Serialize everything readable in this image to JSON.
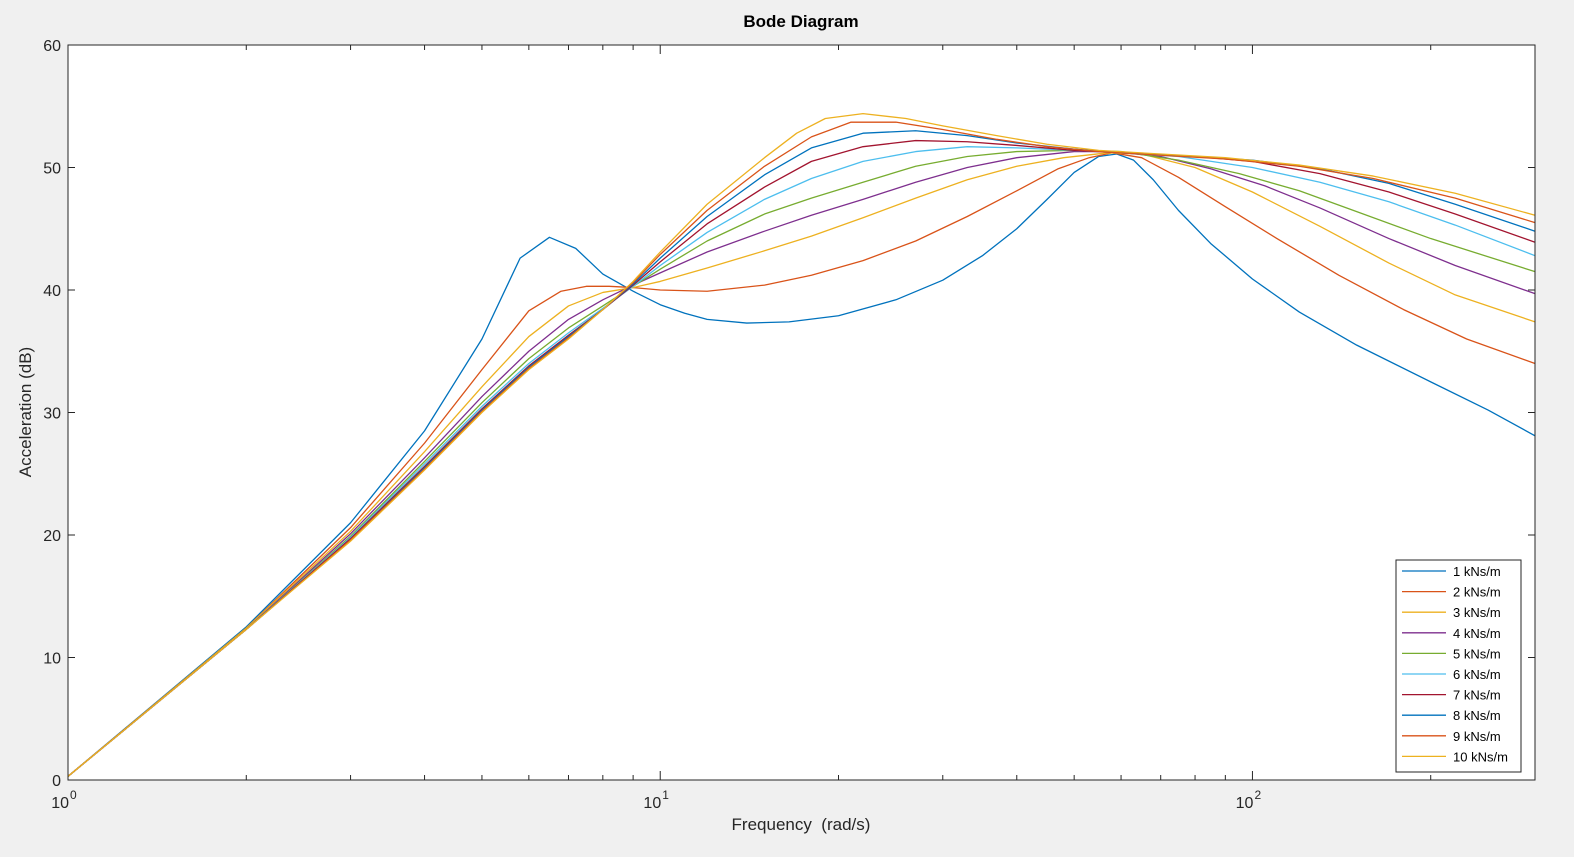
{
  "window": {
    "background": "#f0f0f0"
  },
  "chart_data": {
    "type": "line",
    "title": "Bode Diagram",
    "xlabel": "Frequency  (rad/s)",
    "ylabel": "Acceleration (dB)",
    "xscale": "log",
    "xlim": [
      1,
      300
    ],
    "ylim": [
      0,
      60
    ],
    "yticks": [
      0,
      10,
      20,
      30,
      40,
      50,
      60
    ],
    "xticks_major": [
      {
        "value": 1,
        "base": "10",
        "exp": "0"
      },
      {
        "value": 10,
        "base": "10",
        "exp": "1"
      },
      {
        "value": 100,
        "base": "10",
        "exp": "2"
      }
    ],
    "grid": false,
    "legend_position": "bottom-right",
    "series": [
      {
        "name": "1 kNs/m",
        "color": "#0072BD",
        "points": [
          [
            1,
            0.3
          ],
          [
            2,
            12.5
          ],
          [
            3,
            21
          ],
          [
            4,
            28.5
          ],
          [
            5,
            36
          ],
          [
            5.8,
            42.6
          ],
          [
            6.5,
            44.3
          ],
          [
            7.2,
            43.4
          ],
          [
            8,
            41.3
          ],
          [
            9,
            39.9
          ],
          [
            10,
            38.8
          ],
          [
            11,
            38.1
          ],
          [
            12,
            37.6
          ],
          [
            14,
            37.3
          ],
          [
            16.5,
            37.4
          ],
          [
            20,
            37.9
          ],
          [
            25,
            39.2
          ],
          [
            30,
            40.8
          ],
          [
            35,
            42.8
          ],
          [
            40,
            45
          ],
          [
            45,
            47.4
          ],
          [
            50,
            49.6
          ],
          [
            55,
            50.9
          ],
          [
            59,
            51.1
          ],
          [
            63,
            50.6
          ],
          [
            68,
            49
          ],
          [
            75,
            46.5
          ],
          [
            85,
            43.8
          ],
          [
            100,
            40.9
          ],
          [
            120,
            38.2
          ],
          [
            150,
            35.5
          ],
          [
            200,
            32.5
          ],
          [
            250,
            30.2
          ],
          [
            300,
            28.1
          ]
        ]
      },
      {
        "name": "2 kNs/m",
        "color": "#D95319",
        "points": [
          [
            1,
            0.3
          ],
          [
            2,
            12.4
          ],
          [
            3,
            20.6
          ],
          [
            4,
            27.5
          ],
          [
            5,
            33.5
          ],
          [
            6,
            38.3
          ],
          [
            6.8,
            39.9
          ],
          [
            7.5,
            40.3
          ],
          [
            8.2,
            40.3
          ],
          [
            9,
            40.2
          ],
          [
            10,
            40
          ],
          [
            12,
            39.9
          ],
          [
            15,
            40.4
          ],
          [
            18,
            41.2
          ],
          [
            22,
            42.4
          ],
          [
            27,
            44
          ],
          [
            33,
            46
          ],
          [
            40,
            48.1
          ],
          [
            47,
            49.9
          ],
          [
            53,
            50.8
          ],
          [
            58,
            51.2
          ],
          [
            65,
            50.8
          ],
          [
            75,
            49.2
          ],
          [
            90,
            46.8
          ],
          [
            110,
            44.2
          ],
          [
            140,
            41.2
          ],
          [
            180,
            38.4
          ],
          [
            230,
            36
          ],
          [
            300,
            34
          ]
        ]
      },
      {
        "name": "3 kNs/m",
        "color": "#EDB120",
        "points": [
          [
            1,
            0.3
          ],
          [
            2,
            12.4
          ],
          [
            3,
            20.3
          ],
          [
            4,
            26.8
          ],
          [
            5,
            32.1
          ],
          [
            6,
            36.2
          ],
          [
            7,
            38.7
          ],
          [
            8,
            39.8
          ],
          [
            9,
            40.2
          ],
          [
            10,
            40.7
          ],
          [
            12,
            41.8
          ],
          [
            15,
            43.2
          ],
          [
            18,
            44.4
          ],
          [
            22,
            45.9
          ],
          [
            27,
            47.5
          ],
          [
            33,
            49
          ],
          [
            40,
            50.1
          ],
          [
            48,
            50.8
          ],
          [
            57,
            51.2
          ],
          [
            65,
            51.1
          ],
          [
            80,
            50
          ],
          [
            100,
            48
          ],
          [
            130,
            45.2
          ],
          [
            170,
            42.2
          ],
          [
            220,
            39.6
          ],
          [
            300,
            37.4
          ]
        ]
      },
      {
        "name": "4 kNs/m",
        "color": "#7E2F8E",
        "points": [
          [
            1,
            0.3
          ],
          [
            2,
            12.3
          ],
          [
            3,
            20.1
          ],
          [
            4,
            26.3
          ],
          [
            5,
            31.3
          ],
          [
            6,
            35
          ],
          [
            7,
            37.6
          ],
          [
            8,
            39.2
          ],
          [
            9,
            40.4
          ],
          [
            10,
            41.4
          ],
          [
            12,
            43.1
          ],
          [
            15,
            44.8
          ],
          [
            18,
            46.1
          ],
          [
            22,
            47.4
          ],
          [
            27,
            48.8
          ],
          [
            33,
            50
          ],
          [
            40,
            50.8
          ],
          [
            50,
            51.3
          ],
          [
            58,
            51.3
          ],
          [
            70,
            50.9
          ],
          [
            85,
            49.9
          ],
          [
            105,
            48.5
          ],
          [
            130,
            46.7
          ],
          [
            170,
            44.2
          ],
          [
            220,
            42
          ],
          [
            300,
            39.7
          ]
        ]
      },
      {
        "name": "5 kNs/m",
        "color": "#77AC30",
        "points": [
          [
            1,
            0.3
          ],
          [
            2,
            12.3
          ],
          [
            3,
            19.9
          ],
          [
            4,
            26
          ],
          [
            5,
            30.8
          ],
          [
            6,
            34.4
          ],
          [
            7,
            36.9
          ],
          [
            8,
            38.7
          ],
          [
            9,
            40.3
          ],
          [
            10,
            41.7
          ],
          [
            12,
            44
          ],
          [
            15,
            46.2
          ],
          [
            18,
            47.5
          ],
          [
            22,
            48.8
          ],
          [
            27,
            50.1
          ],
          [
            33,
            50.9
          ],
          [
            40,
            51.3
          ],
          [
            50,
            51.4
          ],
          [
            60,
            51.3
          ],
          [
            75,
            50.6
          ],
          [
            95,
            49.5
          ],
          [
            120,
            48.1
          ],
          [
            150,
            46.4
          ],
          [
            200,
            44.2
          ],
          [
            300,
            41.5
          ]
        ]
      },
      {
        "name": "6 kNs/m",
        "color": "#4DBEEE",
        "points": [
          [
            1,
            0.3
          ],
          [
            2,
            12.3
          ],
          [
            3,
            19.8
          ],
          [
            4,
            25.8
          ],
          [
            5,
            30.5
          ],
          [
            6,
            34
          ],
          [
            7,
            36.5
          ],
          [
            8,
            38.5
          ],
          [
            9,
            40.3
          ],
          [
            10,
            42
          ],
          [
            12,
            44.7
          ],
          [
            15,
            47.4
          ],
          [
            18,
            49.1
          ],
          [
            22,
            50.5
          ],
          [
            27,
            51.3
          ],
          [
            33,
            51.7
          ],
          [
            40,
            51.6
          ],
          [
            50,
            51.4
          ],
          [
            60,
            51.2
          ],
          [
            75,
            50.9
          ],
          [
            100,
            50
          ],
          [
            130,
            48.8
          ],
          [
            170,
            47.2
          ],
          [
            220,
            45.3
          ],
          [
            300,
            42.8
          ]
        ]
      },
      {
        "name": "7 kNs/m",
        "color": "#A2142F",
        "points": [
          [
            1,
            0.3
          ],
          [
            2,
            12.3
          ],
          [
            3,
            19.7
          ],
          [
            4,
            25.6
          ],
          [
            5,
            30.3
          ],
          [
            6,
            33.8
          ],
          [
            7,
            36.3
          ],
          [
            8,
            38.4
          ],
          [
            9,
            40.4
          ],
          [
            10,
            42.3
          ],
          [
            12,
            45.4
          ],
          [
            15,
            48.4
          ],
          [
            18,
            50.5
          ],
          [
            22,
            51.7
          ],
          [
            27,
            52.2
          ],
          [
            33,
            52.1
          ],
          [
            40,
            51.8
          ],
          [
            50,
            51.4
          ],
          [
            60,
            51.2
          ],
          [
            80,
            50.9
          ],
          [
            100,
            50.5
          ],
          [
            130,
            49.5
          ],
          [
            170,
            48
          ],
          [
            220,
            46.2
          ],
          [
            300,
            43.9
          ]
        ]
      },
      {
        "name": "8 kNs/m",
        "color": "#0072BD",
        "points": [
          [
            1,
            0.3
          ],
          [
            2,
            12.3
          ],
          [
            3,
            19.6
          ],
          [
            4,
            25.5
          ],
          [
            5,
            30.2
          ],
          [
            6,
            33.7
          ],
          [
            7,
            36.2
          ],
          [
            8,
            38.4
          ],
          [
            9,
            40.5
          ],
          [
            10,
            42.6
          ],
          [
            12,
            46
          ],
          [
            15,
            49.4
          ],
          [
            18,
            51.6
          ],
          [
            22,
            52.8
          ],
          [
            27,
            53
          ],
          [
            33,
            52.6
          ],
          [
            40,
            52
          ],
          [
            50,
            51.5
          ],
          [
            60,
            51.2
          ],
          [
            80,
            50.9
          ],
          [
            100,
            50.6
          ],
          [
            130,
            49.9
          ],
          [
            170,
            48.7
          ],
          [
            220,
            47
          ],
          [
            300,
            44.8
          ]
        ]
      },
      {
        "name": "9 kNs/m",
        "color": "#D95319",
        "points": [
          [
            1,
            0.3
          ],
          [
            2,
            12.3
          ],
          [
            3,
            19.6
          ],
          [
            4,
            25.4
          ],
          [
            5,
            30.1
          ],
          [
            6,
            33.6
          ],
          [
            7,
            36.1
          ],
          [
            8,
            38.4
          ],
          [
            9,
            40.6
          ],
          [
            10,
            42.9
          ],
          [
            12,
            46.5
          ],
          [
            15,
            50.1
          ],
          [
            18,
            52.5
          ],
          [
            21,
            53.7
          ],
          [
            25,
            53.7
          ],
          [
            30,
            53.1
          ],
          [
            37,
            52.3
          ],
          [
            45,
            51.7
          ],
          [
            55,
            51.3
          ],
          [
            70,
            51
          ],
          [
            90,
            50.7
          ],
          [
            120,
            50.1
          ],
          [
            160,
            49.1
          ],
          [
            220,
            47.5
          ],
          [
            300,
            45.5
          ]
        ]
      },
      {
        "name": "10 kNs/m",
        "color": "#EDB120",
        "points": [
          [
            1,
            0.3
          ],
          [
            2,
            12.3
          ],
          [
            3,
            19.5
          ],
          [
            4,
            25.3
          ],
          [
            5,
            30
          ],
          [
            6,
            33.5
          ],
          [
            7,
            36
          ],
          [
            8,
            38.4
          ],
          [
            9,
            40.7
          ],
          [
            10,
            43.1
          ],
          [
            12,
            47
          ],
          [
            15,
            50.8
          ],
          [
            17,
            52.8
          ],
          [
            19,
            54
          ],
          [
            22,
            54.4
          ],
          [
            26,
            54
          ],
          [
            30,
            53.4
          ],
          [
            37,
            52.6
          ],
          [
            45,
            51.9
          ],
          [
            55,
            51.4
          ],
          [
            70,
            51.1
          ],
          [
            90,
            50.8
          ],
          [
            120,
            50.2
          ],
          [
            160,
            49.3
          ],
          [
            220,
            47.9
          ],
          [
            300,
            46.1
          ]
        ]
      }
    ]
  }
}
